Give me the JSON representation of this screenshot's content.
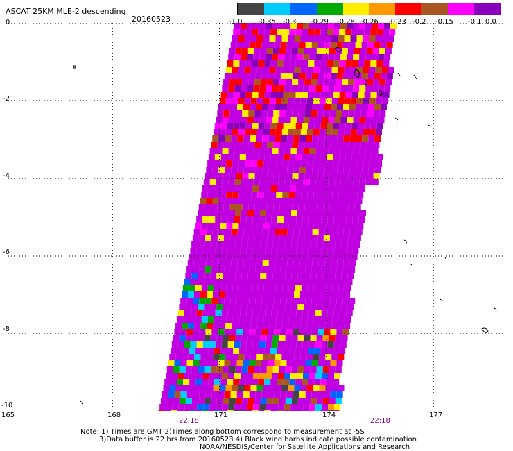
{
  "header": {
    "title": "ASCAT 25KM MLE-2 descending",
    "date": "20160523"
  },
  "colorbar": {
    "colors": [
      "#444444",
      "#00ccff",
      "#0066ff",
      "#00aa00",
      "#ffee00",
      "#ff9900",
      "#ff0000",
      "#aa5522",
      "#ff00ff",
      "#8800bb"
    ],
    "labels": [
      "-1.0",
      "-0.35",
      "-0.3",
      "-0.29",
      "-0.28",
      "-0.26",
      "-0.23",
      "-0.2",
      "-0.15",
      "-0.1",
      "0.0"
    ]
  },
  "axes": {
    "y_labels": [
      "0",
      "-2",
      "-4",
      "-6",
      "-8",
      "-10"
    ],
    "x_labels": [
      "165",
      "168",
      "171",
      "174",
      "177"
    ],
    "times": [
      "22:18",
      "22:18"
    ]
  },
  "notes": {
    "line1": "Note: 1) Times are GMT 2)Times along bottom correspond to measurement at -5S",
    "line2": "3)Data buffer is 22 hrs from 20160523 4) Black wind barbs indicate possible contamination",
    "line3": "NOAA/NESDIS/Center for Satellite Applications and Research"
  },
  "map": {
    "lon_range": [
      165,
      179
    ],
    "lat_range": [
      -10,
      0
    ],
    "background_value_color": "#c000e0",
    "swath_note": "descending ASCAT swath, MLE values plotted as colored cells"
  }
}
